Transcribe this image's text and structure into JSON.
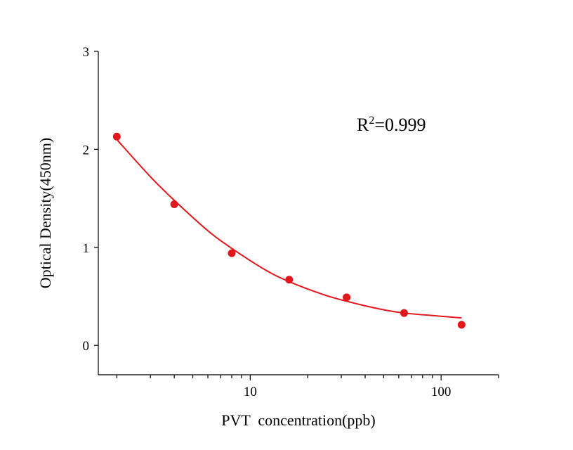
{
  "chart_data": {
    "type": "scatter",
    "xlabel": "PVT  concentration(ppb)",
    "ylabel": "Optical Density(450nm)",
    "x_scale": "log",
    "xlim": [
      1.6,
      200
    ],
    "ylim": [
      -0.3,
      3
    ],
    "x_ticks": [
      10,
      100
    ],
    "x_tick_labels": [
      "10",
      "100"
    ],
    "y_ticks": [
      0,
      1,
      2,
      3
    ],
    "y_tick_labels": [
      "0",
      "1",
      "2",
      "3"
    ],
    "grid": false,
    "annotation": {
      "base": "R",
      "sup": "2",
      "rest": "=0.999"
    },
    "points": {
      "x": [
        2,
        4,
        8,
        16,
        32,
        64,
        128
      ],
      "y": [
        2.13,
        1.44,
        0.94,
        0.67,
        0.49,
        0.33,
        0.21
      ]
    },
    "fit": {
      "x": [
        2,
        3,
        4,
        6,
        8,
        12,
        16,
        24,
        32,
        48,
        64,
        96,
        128
      ],
      "y": [
        2.1,
        1.72,
        1.48,
        1.17,
        0.99,
        0.77,
        0.65,
        0.52,
        0.45,
        0.37,
        0.33,
        0.3,
        0.28
      ]
    },
    "colors": {
      "series": "#e3161b",
      "axis": "#000000"
    }
  }
}
